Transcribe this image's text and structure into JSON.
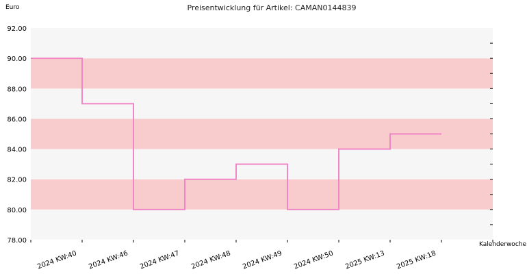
{
  "chart_data": {
    "type": "line",
    "step": true,
    "title": "Preisentwicklung für Artikel: CAMAN0144839",
    "ylabel": "Euro",
    "xlabel": "Kalenderwoche",
    "ylim": [
      78,
      92
    ],
    "ytick_step": 2,
    "yticks": [
      "78.00",
      "80.00",
      "82.00",
      "84.00",
      "86.00",
      "88.00",
      "90.00",
      "92.00"
    ],
    "categories": [
      "2024 KW:40",
      "2024 KW:46",
      "2024 KW:47",
      "2024 KW:48",
      "2024 KW:49",
      "2024 KW:50",
      "2025 KW:13",
      "2025 KW:18"
    ],
    "series": [
      {
        "values": [
          90,
          87,
          80,
          82,
          83,
          80,
          84,
          85
        ]
      }
    ],
    "grid": false,
    "band_colors": [
      "#f6f6f6",
      "#f8cccc"
    ],
    "line_color": "#ef86c6"
  }
}
